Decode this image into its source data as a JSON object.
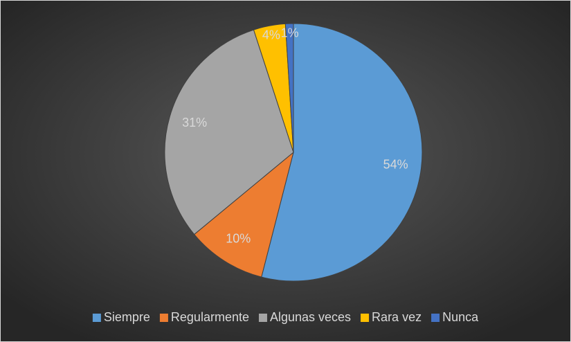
{
  "chart_data": {
    "type": "pie",
    "categories": [
      "Siempre",
      "Regularmente",
      "Algunas veces",
      "Rara vez",
      "Nunca"
    ],
    "values": [
      54,
      10,
      31,
      4,
      1
    ],
    "value_labels": [
      "54%",
      "10%",
      "31%",
      "4%",
      "1%"
    ],
    "colors": [
      "#5b9bd5",
      "#ed7d31",
      "#a5a5a5",
      "#ffc000",
      "#4472c4"
    ],
    "legend": "bottom"
  }
}
